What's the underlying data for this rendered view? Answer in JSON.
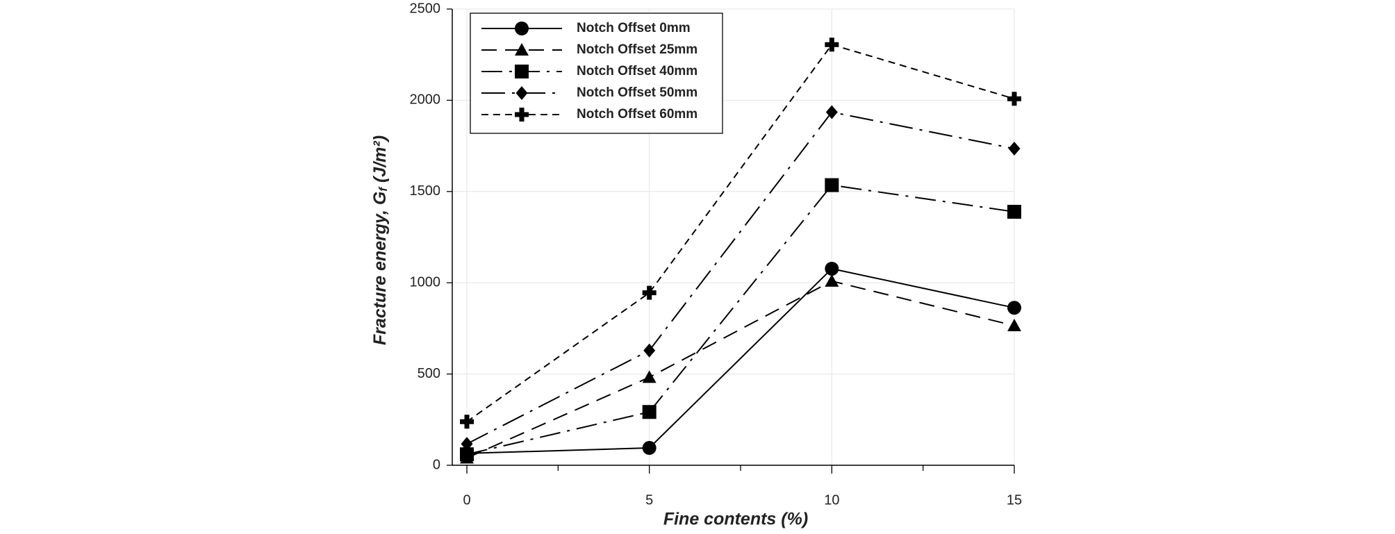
{
  "chart_data": {
    "type": "line",
    "x_label": "Fine contents (%)",
    "y_label": {
      "text": "Fracture energy, G",
      "subscript": "f",
      "unit": " (J/m²)"
    },
    "x": [
      0,
      5,
      10,
      15
    ],
    "xlim": [
      -0.4,
      15
    ],
    "ylim": [
      0,
      2500
    ],
    "xticks": [
      0,
      5,
      10,
      15
    ],
    "xminorticks": [
      2.5,
      7.5,
      12.5
    ],
    "yticks": [
      0,
      500,
      1000,
      1500,
      2000,
      2500
    ],
    "grid": true,
    "legend": "upper left",
    "series": [
      {
        "name": "Notch Offset 0mm",
        "color": "#000000",
        "marker": "circle",
        "dash": "none",
        "values": [
          65,
          95,
          1077,
          863
        ]
      },
      {
        "name": "Notch Offset 25mm",
        "color": "#000000",
        "marker": "triangle",
        "dash": "22 12",
        "values": [
          40,
          482,
          1009,
          765
        ]
      },
      {
        "name": "Notch Offset 40mm",
        "color": "#000000",
        "marker": "square",
        "dash": "30 10 4 10",
        "values": [
          60,
          292,
          1535,
          1389
        ]
      },
      {
        "name": "Notch Offset 50mm",
        "color": "#000000",
        "marker": "diamond",
        "dash": "34 10 4 10",
        "values": [
          117,
          629,
          1935,
          1735
        ]
      },
      {
        "name": "Notch Offset 60mm",
        "color": "#000000",
        "marker": "plus",
        "dash": "10 7",
        "values": [
          239,
          945,
          2305,
          2008
        ]
      }
    ]
  }
}
